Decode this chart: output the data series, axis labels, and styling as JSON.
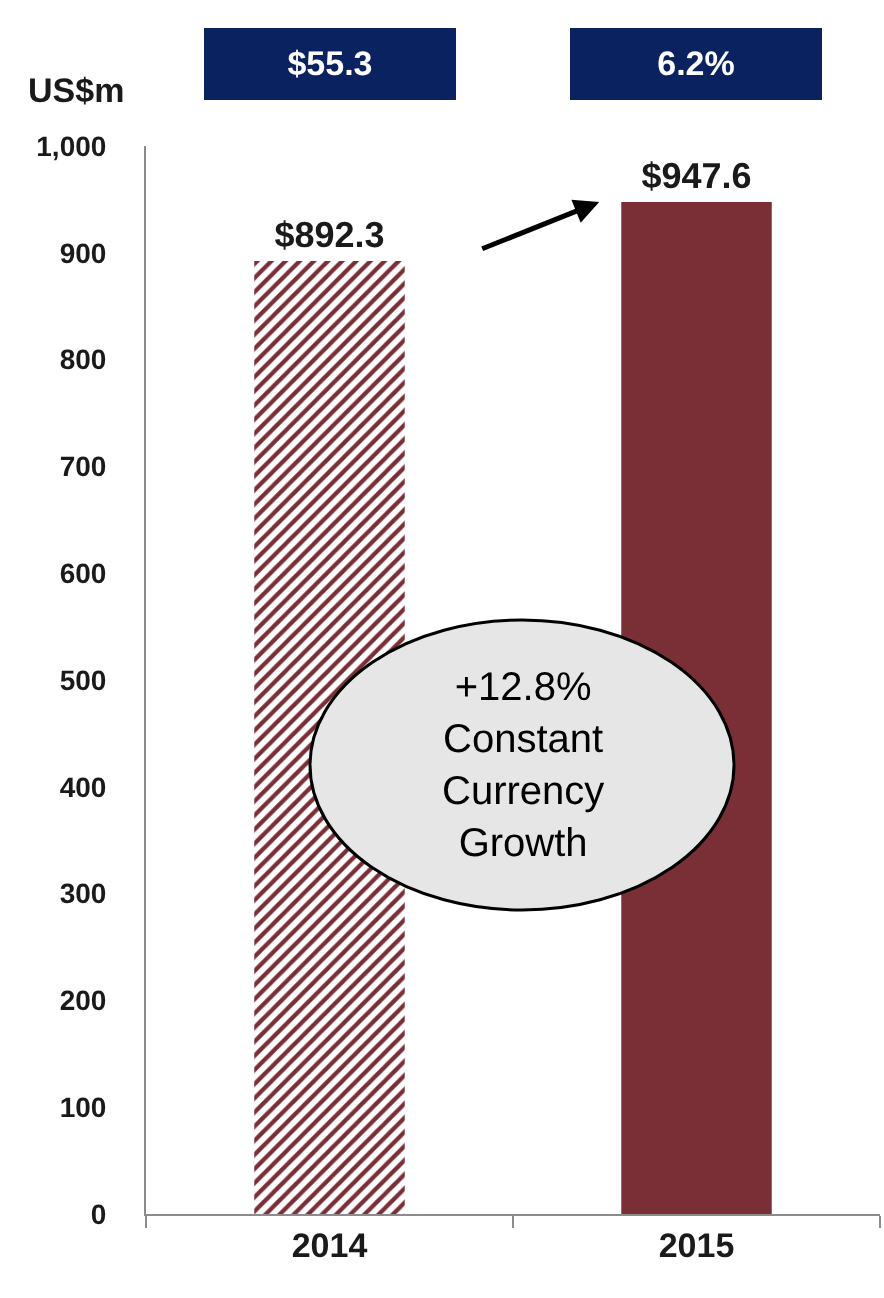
{
  "chart_data": {
    "type": "bar",
    "categories": [
      "2014",
      "2015"
    ],
    "values": [
      892.3,
      947.6
    ],
    "colors": [
      "#7a2e35",
      "#7a2e35"
    ],
    "value_labels": [
      "$892.3",
      "$947.6"
    ],
    "ylabel": "US$m",
    "ylim": [
      0,
      1000
    ],
    "yticks": [
      0,
      100,
      200,
      300,
      400,
      500,
      600,
      700,
      800,
      900,
      {
        "value": 1000,
        "label": "1,000"
      }
    ],
    "annotations": [
      "$55.3",
      "6.2%",
      "+12.8% Constant Currency Growth"
    ]
  }
}
